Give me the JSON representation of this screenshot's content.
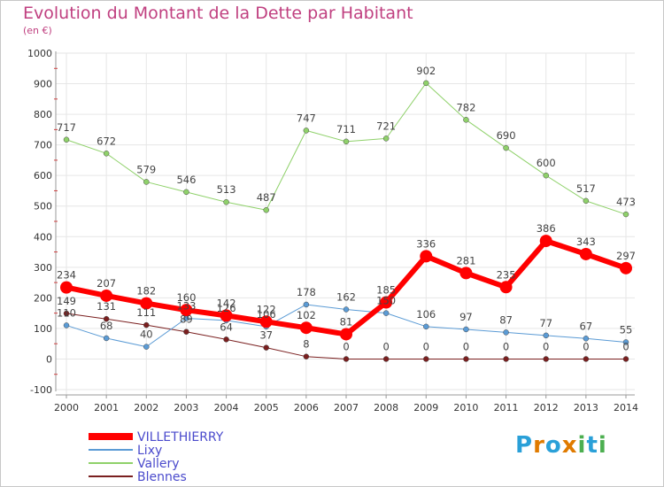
{
  "title": "Evolution du Montant de la Dette par Habitant",
  "subtitle": "(en €)",
  "logo": {
    "letters": [
      "P",
      "r",
      "o",
      "x",
      "i",
      "t",
      "i"
    ],
    "colors": [
      "#2aa0d8",
      "#e07b00",
      "#2aa0d8",
      "#e07b00",
      "#4caf50",
      "#2aa0d8",
      "#4caf50"
    ]
  },
  "chart_data": {
    "type": "line",
    "x": [
      "2000",
      "2001",
      "2002",
      "2003",
      "2004",
      "2005",
      "2006",
      "2007",
      "2008",
      "2009",
      "2010",
      "2011",
      "2012",
      "2013",
      "2014"
    ],
    "ylim": [
      -100,
      1000
    ],
    "yticks": [
      -100,
      0,
      100,
      200,
      300,
      400,
      500,
      600,
      700,
      800,
      900,
      1000
    ],
    "grid": true,
    "legend": "bottom-left",
    "series": [
      {
        "name": "Blennes",
        "color": "#7a1f1f",
        "width": 1,
        "values": [
          149,
          131,
          111,
          89,
          64,
          37,
          8,
          0,
          0,
          0,
          0,
          0,
          0,
          0,
          0
        ]
      },
      {
        "name": "Lixy",
        "color": "#5b9bd5",
        "width": 1,
        "values": [
          110,
          68,
          40,
          133,
          126,
          106,
          178,
          162,
          150,
          106,
          97,
          87,
          77,
          67,
          55
        ]
      },
      {
        "name": "Vallery",
        "color": "#8fd16a",
        "width": 1,
        "values": [
          717,
          672,
          579,
          546,
          513,
          487,
          747,
          711,
          721,
          902,
          782,
          690,
          600,
          517,
          473
        ]
      },
      {
        "name": "VILLETHIERRY",
        "color": "#ff0000",
        "width": 6,
        "values": [
          234,
          207,
          182,
          160,
          142,
          122,
          102,
          81,
          185,
          336,
          281,
          235,
          386,
          343,
          297
        ]
      }
    ],
    "legend_order": [
      "VILLETHIERRY",
      "Lixy",
      "Vallery",
      "Blennes"
    ]
  }
}
